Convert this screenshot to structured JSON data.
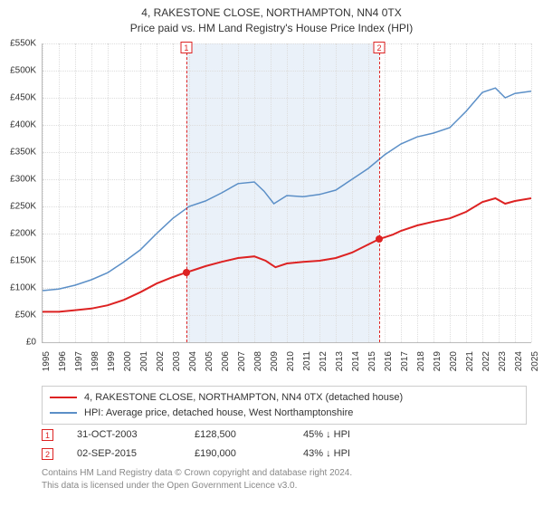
{
  "title": {
    "line1": "4, RAKESTONE CLOSE, NORTHAMPTON, NN4 0TX",
    "line2": "Price paid vs. HM Land Registry's House Price Index (HPI)"
  },
  "chart": {
    "type": "line",
    "background_color": "#ffffff",
    "grid_color": "#dddddd",
    "axis_color": "#bbbbbb",
    "label_fontsize": 10,
    "title_fontsize": 12,
    "x_start": 1995,
    "x_end": 2025,
    "xticks": [
      1995,
      1996,
      1997,
      1998,
      1999,
      2000,
      2001,
      2002,
      2003,
      2004,
      2005,
      2006,
      2007,
      2008,
      2009,
      2010,
      2011,
      2012,
      2013,
      2014,
      2015,
      2016,
      2017,
      2018,
      2019,
      2020,
      2021,
      2022,
      2023,
      2024,
      2025
    ],
    "ylim": [
      0,
      550
    ],
    "yticks": [
      0,
      50,
      100,
      150,
      200,
      250,
      300,
      350,
      400,
      450,
      500,
      550
    ],
    "ytick_labels": [
      "£0",
      "£50K",
      "£100K",
      "£150K",
      "£200K",
      "£250K",
      "£300K",
      "£350K",
      "£400K",
      "£450K",
      "£500K",
      "£550K"
    ],
    "shade_band": {
      "from": 2003.83,
      "to": 2015.67,
      "color": "#eaf1f9"
    },
    "series": [
      {
        "name": "price_paid",
        "color": "#dd2222",
        "line_width": 2,
        "data": [
          [
            1995.0,
            56
          ],
          [
            1996.0,
            56
          ],
          [
            1997.0,
            59
          ],
          [
            1998.0,
            62
          ],
          [
            1999.0,
            68
          ],
          [
            2000.0,
            78
          ],
          [
            2001.0,
            92
          ],
          [
            2002.0,
            108
          ],
          [
            2003.0,
            120
          ],
          [
            2003.83,
            128.5
          ],
          [
            2004.5,
            135
          ],
          [
            2005.0,
            140
          ],
          [
            2006.0,
            148
          ],
          [
            2007.0,
            155
          ],
          [
            2008.0,
            158
          ],
          [
            2008.7,
            150
          ],
          [
            2009.3,
            138
          ],
          [
            2010.0,
            145
          ],
          [
            2011.0,
            148
          ],
          [
            2012.0,
            150
          ],
          [
            2013.0,
            155
          ],
          [
            2014.0,
            165
          ],
          [
            2015.0,
            180
          ],
          [
            2015.67,
            190
          ],
          [
            2016.5,
            198
          ],
          [
            2017.0,
            205
          ],
          [
            2018.0,
            215
          ],
          [
            2019.0,
            222
          ],
          [
            2020.0,
            228
          ],
          [
            2021.0,
            240
          ],
          [
            2022.0,
            258
          ],
          [
            2022.8,
            265
          ],
          [
            2023.4,
            255
          ],
          [
            2024.0,
            260
          ],
          [
            2025.0,
            265
          ]
        ]
      },
      {
        "name": "hpi",
        "color": "#5b8fc7",
        "line_width": 1.5,
        "data": [
          [
            1995.0,
            95
          ],
          [
            1996.0,
            98
          ],
          [
            1997.0,
            105
          ],
          [
            1998.0,
            115
          ],
          [
            1999.0,
            128
          ],
          [
            2000.0,
            148
          ],
          [
            2001.0,
            170
          ],
          [
            2002.0,
            200
          ],
          [
            2003.0,
            228
          ],
          [
            2004.0,
            250
          ],
          [
            2005.0,
            260
          ],
          [
            2006.0,
            275
          ],
          [
            2007.0,
            292
          ],
          [
            2008.0,
            295
          ],
          [
            2008.6,
            278
          ],
          [
            2009.2,
            255
          ],
          [
            2010.0,
            270
          ],
          [
            2011.0,
            268
          ],
          [
            2012.0,
            272
          ],
          [
            2013.0,
            280
          ],
          [
            2014.0,
            300
          ],
          [
            2015.0,
            320
          ],
          [
            2016.0,
            345
          ],
          [
            2017.0,
            365
          ],
          [
            2018.0,
            378
          ],
          [
            2019.0,
            385
          ],
          [
            2020.0,
            395
          ],
          [
            2021.0,
            425
          ],
          [
            2022.0,
            460
          ],
          [
            2022.8,
            468
          ],
          [
            2023.4,
            450
          ],
          [
            2024.0,
            458
          ],
          [
            2025.0,
            462
          ]
        ]
      }
    ],
    "markers": [
      {
        "num": "1",
        "x": 2003.83,
        "y": 128.5
      },
      {
        "num": "2",
        "x": 2015.67,
        "y": 190
      }
    ]
  },
  "legend": {
    "items": [
      {
        "color": "#dd2222",
        "label": "4, RAKESTONE CLOSE, NORTHAMPTON, NN4 0TX (detached house)"
      },
      {
        "color": "#5b8fc7",
        "label": "HPI: Average price, detached house, West Northamptonshire"
      }
    ]
  },
  "marker_rows": [
    {
      "num": "1",
      "date": "31-OCT-2003",
      "price": "£128,500",
      "hpi": "45% ↓ HPI"
    },
    {
      "num": "2",
      "date": "02-SEP-2015",
      "price": "£190,000",
      "hpi": "43% ↓ HPI"
    }
  ],
  "footnote": {
    "line1": "Contains HM Land Registry data © Crown copyright and database right 2024.",
    "line2": "This data is licensed under the Open Government Licence v3.0."
  }
}
